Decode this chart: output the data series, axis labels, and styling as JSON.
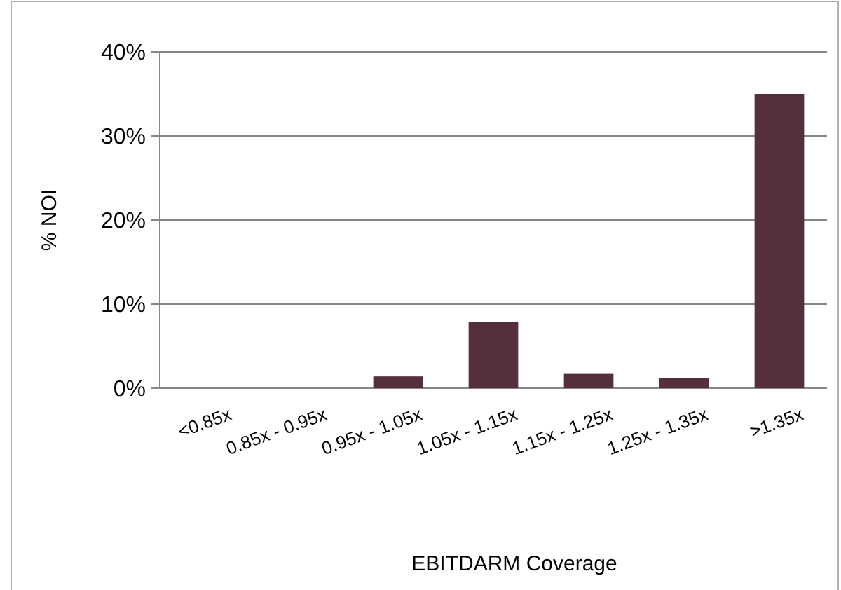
{
  "chart_data": {
    "type": "bar",
    "xlabel": "EBITDARM Coverage",
    "ylabel": "% NOI",
    "categories": [
      "<0.85x",
      "0.85x - 0.95x",
      "0.95x - 1.05x",
      "1.05x - 1.15x",
      "1.15x - 1.25x",
      "1.25x - 1.35x",
      ">1.35x"
    ],
    "values": [
      0,
      0,
      1.4,
      7.9,
      1.7,
      1.2,
      35
    ],
    "color": "#552f3b",
    "ylim": [
      0,
      40
    ],
    "yticks": [
      {
        "value": 0,
        "label": "0%"
      },
      {
        "value": 10,
        "label": "10%"
      },
      {
        "value": 20,
        "label": "20%"
      },
      {
        "value": 30,
        "label": "30%"
      },
      {
        "value": 40,
        "label": "40%"
      }
    ],
    "grid": "y"
  }
}
